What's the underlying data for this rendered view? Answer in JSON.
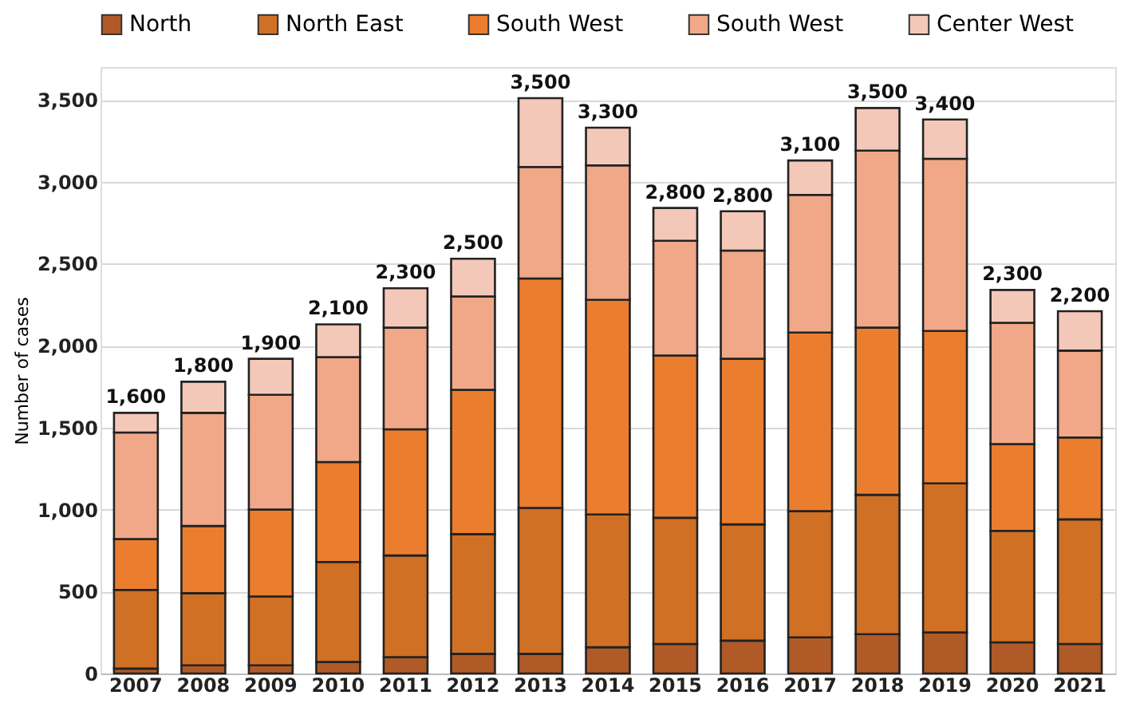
{
  "chart_data": {
    "type": "bar",
    "stacked": true,
    "ylabel": "Number of cases",
    "categories": [
      "2007",
      "2008",
      "2009",
      "2010",
      "2011",
      "2012",
      "2013",
      "2014",
      "2015",
      "2016",
      "2017",
      "2018",
      "2019",
      "2020",
      "2021"
    ],
    "series": [
      {
        "name": "North",
        "color": "#b05a28",
        "values": [
          30,
          50,
          50,
          70,
          100,
          120,
          120,
          160,
          180,
          200,
          220,
          240,
          250,
          190,
          180
        ]
      },
      {
        "name": "North East",
        "color": "#d07025",
        "values": [
          480,
          440,
          420,
          610,
          620,
          730,
          890,
          810,
          770,
          710,
          770,
          850,
          910,
          680,
          760
        ]
      },
      {
        "name": "South West",
        "color": "#eb7d2e",
        "values": [
          310,
          410,
          530,
          610,
          770,
          880,
          1400,
          1310,
          990,
          1010,
          1090,
          1020,
          930,
          530,
          500
        ]
      },
      {
        "name": "South West",
        "color": "#f0a888",
        "values": [
          650,
          690,
          700,
          640,
          620,
          570,
          680,
          820,
          700,
          660,
          840,
          1080,
          1050,
          740,
          530
        ]
      },
      {
        "name": "Center West",
        "color": "#f4c8b8",
        "values": [
          120,
          190,
          220,
          200,
          240,
          230,
          420,
          230,
          200,
          240,
          210,
          260,
          240,
          200,
          240
        ]
      }
    ],
    "annotations": [
      {
        "text": "1,600",
        "x": "2007",
        "y": 1590
      },
      {
        "text": "1,800",
        "x": "2008",
        "y": 1780
      },
      {
        "text": "1,900",
        "x": "2009",
        "y": 1920
      },
      {
        "text": "2,100",
        "x": "2010",
        "y": 2130
      },
      {
        "text": "2,300",
        "x": "2011",
        "y": 2350
      },
      {
        "text": "2,500",
        "x": "2012",
        "y": 2530
      },
      {
        "text": "3,500",
        "x": "2013",
        "y": 3510
      },
      {
        "text": "3,300",
        "x": "2014",
        "y": 3330
      },
      {
        "text": "2,800",
        "x": "2015",
        "y": 2840
      },
      {
        "text": "2,800",
        "x": "2016",
        "y": 2820
      },
      {
        "text": "3,100",
        "x": "2017",
        "y": 3130
      },
      {
        "text": "3,500",
        "x": "2018",
        "y": 3450
      },
      {
        "text": "3,400",
        "x": "2019",
        "y": 3380
      },
      {
        "text": "2,300",
        "x": "2020",
        "y": 2340
      },
      {
        "text": "2,200",
        "x": "2021",
        "y": 2210
      }
    ],
    "ylim": [
      0,
      3700
    ],
    "yticks": [
      0,
      500,
      {
        "value": 1000,
        "label": "1,000"
      },
      {
        "value": 1500,
        "label": "1,500"
      },
      {
        "value": 2000,
        "label": "2,000"
      },
      {
        "value": 2500,
        "label": "2,500"
      },
      {
        "value": 3000,
        "label": "3,000"
      },
      {
        "value": 3500,
        "label": "3,500"
      }
    ],
    "grid": "y",
    "legend": "top"
  }
}
